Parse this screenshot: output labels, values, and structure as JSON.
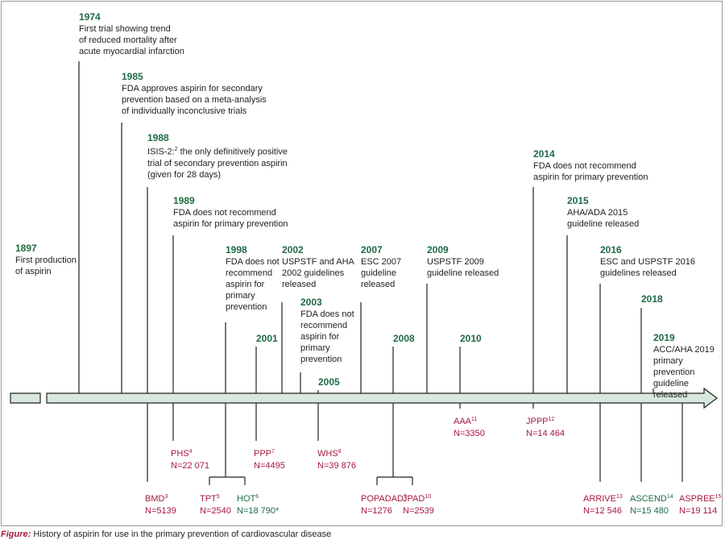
{
  "colors": {
    "year": "#1f6b45",
    "trial_red": "#a6183c",
    "trial_green": "#1f6b45",
    "arrow_fill": "#d8e8dc",
    "line": "#222222"
  },
  "events": [
    {
      "id": "e1897",
      "year": "1897",
      "text": "First production\nof aspirin"
    },
    {
      "id": "e1974",
      "year": "1974",
      "text": "First trial showing trend\nof reduced mortality after\nacute myocardial infarction"
    },
    {
      "id": "e1985",
      "year": "1985",
      "text": "FDA approves aspirin for secondary\nprevention based on a meta-analysis\nof individually inconclusive trials"
    },
    {
      "id": "e1988",
      "year": "1988",
      "text": "the only definitively positive\ntrial of secondary prevention aspirin\n(given for 28 days)",
      "text_prefix": "ISIS-2:",
      "ref": "2"
    },
    {
      "id": "e1989",
      "year": "1989",
      "text": "FDA does not recommend\naspirin for primary prevention"
    },
    {
      "id": "e1998",
      "year": "1998",
      "text": "FDA does not\nrecommend\naspirin for\nprimary\nprevention"
    },
    {
      "id": "e2001",
      "year": "2001",
      "text": ""
    },
    {
      "id": "e2002",
      "year": "2002",
      "text": "USPSTF and AHA\n2002 guidelines\nreleased"
    },
    {
      "id": "e2003",
      "year": "2003",
      "text": "FDA does not\nrecommend\naspirin for\nprimary\nprevention"
    },
    {
      "id": "e2005",
      "year": "2005",
      "text": ""
    },
    {
      "id": "e2007",
      "year": "2007",
      "text": "ESC 2007\nguideline\nreleased"
    },
    {
      "id": "e2008",
      "year": "2008",
      "text": ""
    },
    {
      "id": "e2009",
      "year": "2009",
      "text": "USPSTF 2009\nguideline released"
    },
    {
      "id": "e2010",
      "year": "2010",
      "text": ""
    },
    {
      "id": "e2014",
      "year": "2014",
      "text": "FDA does not recommend\naspirin for primary prevention"
    },
    {
      "id": "e2015",
      "year": "2015",
      "text": "AHA/ADA 2015\nguideline released"
    },
    {
      "id": "e2016",
      "year": "2016",
      "text": "ESC and USPSTF 2016\nguidelines released"
    },
    {
      "id": "e2018",
      "year": "2018",
      "text": ""
    },
    {
      "id": "e2019",
      "year": "2019",
      "text": "ACC/AHA 2019\nprimary prevention\nguideline released"
    }
  ],
  "trials": [
    {
      "id": "bmd",
      "name": "BMD",
      "ref": "3",
      "n": "N=5139",
      "color": "red"
    },
    {
      "id": "phs",
      "name": "PHS",
      "ref": "4",
      "n": "N=22 071",
      "color": "red"
    },
    {
      "id": "tpt",
      "name": "TPT",
      "ref": "5",
      "n": "N=2540",
      "color": "red"
    },
    {
      "id": "hot",
      "name": "HOT",
      "ref": "6",
      "n": "N=18 790*",
      "color": "green"
    },
    {
      "id": "ppp",
      "name": "PPP",
      "ref": "7",
      "n": "N=4495",
      "color": "red"
    },
    {
      "id": "whs",
      "name": "WHS",
      "ref": "8",
      "n": "N=39 876",
      "color": "red"
    },
    {
      "id": "popadad",
      "name": "POPADAD",
      "ref": "9",
      "n": "N=1276",
      "color": "red"
    },
    {
      "id": "jpad",
      "name": "JPAD",
      "ref": "10",
      "n": "N=2539",
      "color": "red"
    },
    {
      "id": "aaa",
      "name": "AAA",
      "ref": "11",
      "n": "N=3350",
      "color": "red"
    },
    {
      "id": "jppp",
      "name": "JPPP",
      "ref": "12",
      "n": "N=14 464",
      "color": "red"
    },
    {
      "id": "arrive",
      "name": "ARRIVE",
      "ref": "13",
      "n": "N=12 546",
      "color": "red"
    },
    {
      "id": "ascend",
      "name": "ASCEND",
      "ref": "14",
      "n": "N=15 480",
      "color": "green"
    },
    {
      "id": "aspree",
      "name": "ASPREE",
      "ref": "15",
      "n": "N=19 114",
      "color": "red"
    }
  ],
  "caption": {
    "label": "Figure:",
    "text": "History of aspirin for use in the primary prevention of cardiovascular disease"
  }
}
